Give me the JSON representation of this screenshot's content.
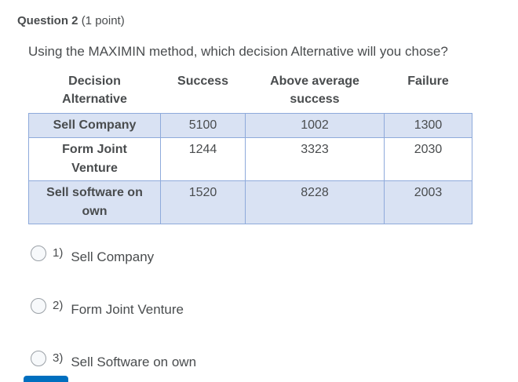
{
  "question": {
    "number_label": "Question 2",
    "points_label": "(1 point)",
    "prompt": "Using the MAXIMIN method, which decision Alternative will you chose?"
  },
  "table": {
    "columns": [
      "Decision Alternative",
      "Success",
      "Above average success",
      "Failure"
    ],
    "rows": [
      {
        "alternative": "Sell Company",
        "values": [
          "5100",
          "1002",
          "1300"
        ]
      },
      {
        "alternative": "Form Joint Venture",
        "values": [
          "1244",
          "3323",
          "2030"
        ]
      },
      {
        "alternative": "Sell software on own",
        "values": [
          "1520",
          "8228",
          "2003"
        ]
      }
    ]
  },
  "options": [
    {
      "number": "1)",
      "label": "Sell Company",
      "selected": false
    },
    {
      "number": "2)",
      "label": "Form Joint Venture",
      "selected": false
    },
    {
      "number": "3)",
      "label": "Sell Software on own",
      "selected": false
    }
  ],
  "colors": {
    "text": "#494c4e",
    "row_highlight": "#d9e2f3",
    "table_border": "#8eaadb",
    "radio_border": "#9aa0a6",
    "cutoff_button_blue": "#006fbf"
  }
}
